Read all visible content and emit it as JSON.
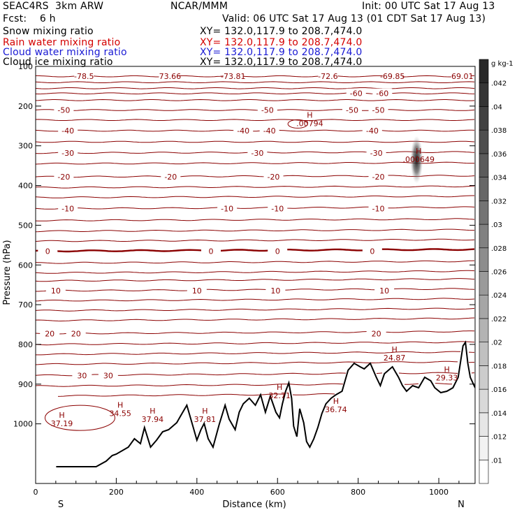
{
  "header": {
    "left_title": "SEAC4RS  3km ARW",
    "center_title": "NCAR/MMM",
    "init": "Init: 00 UTC Sat 17 Aug 13",
    "fcst": "Fcst:    6 h",
    "valid": "Valid: 06 UTC Sat 17 Aug 13 (01 CDT Sat 17 Aug 13)",
    "fields": [
      {
        "name": "Snow mixing ratio",
        "xy": "XY= 132.0,117.9 to 208.7,474.0",
        "color": "#000000"
      },
      {
        "name": "Rain water mixing ratio",
        "xy": "XY= 132.0,117.9 to 208.7,474.0",
        "color": "#d40000"
      },
      {
        "name": "Cloud water mixing ratio",
        "xy": "XY= 132.0,117.9 to 208.7,474.0",
        "color": "#1a1ad4"
      },
      {
        "name": "Cloud ice mixing ratio",
        "xy": "XY= 132.0,117.9 to 208.7,474.0",
        "color": "#000000"
      }
    ]
  },
  "chart_data": {
    "type": "contour cross-section",
    "xlabel": "Distance (km)",
    "ylabel": "Pressure (hPa)",
    "xlim": [
      0,
      1090
    ],
    "ylim": [
      1050,
      100
    ],
    "x_ticks": [
      "0",
      "200",
      "400",
      "600",
      "800",
      "1000"
    ],
    "y_ticks": [
      "100",
      "200",
      "300",
      "400",
      "500",
      "600",
      "700",
      "800",
      "900",
      "1000"
    ],
    "x_ends": {
      "left": "S",
      "right": "N"
    },
    "contour_levels": [
      {
        "value": -75,
        "pressure": 125,
        "labels": [
          {
            "text": "-78.5",
            "x": 120
          },
          {
            "text": "-73.66",
            "x": 330
          },
          {
            "text": "-73.81",
            "x": 490
          },
          {
            "text": "-72.6",
            "x": 725
          },
          {
            "text": "-69.85",
            "x": 885
          },
          {
            "text": "-69.01",
            "x": 1055
          }
        ]
      },
      {
        "value": -60,
        "pressure": 168,
        "labels": [
          {
            "text": "-60",
            "x": 795
          },
          {
            "text": "-60",
            "x": 860
          }
        ]
      },
      {
        "value": -50,
        "pressure": 210,
        "labels": [
          {
            "text": "-50",
            "x": 70
          },
          {
            "text": "-50",
            "x": 575
          },
          {
            "text": "-50",
            "x": 785
          },
          {
            "text": "-50",
            "x": 850
          }
        ]
      },
      {
        "value": -40,
        "pressure": 262,
        "labels": [
          {
            "text": "-40",
            "x": 80
          },
          {
            "text": "-40",
            "x": 515
          },
          {
            "text": "-40",
            "x": 580
          },
          {
            "text": "-40",
            "x": 835
          }
        ]
      },
      {
        "value": -30,
        "pressure": 318,
        "labels": [
          {
            "text": "-30",
            "x": 80
          },
          {
            "text": "-30",
            "x": 550
          },
          {
            "text": "-30",
            "x": 845
          }
        ]
      },
      {
        "value": -20,
        "pressure": 378,
        "labels": [
          {
            "text": "-20",
            "x": 70
          },
          {
            "text": "-20",
            "x": 335
          },
          {
            "text": "-20",
            "x": 590
          },
          {
            "text": "-20",
            "x": 850
          }
        ]
      },
      {
        "value": -10,
        "pressure": 458,
        "labels": [
          {
            "text": "-10",
            "x": 80
          },
          {
            "text": "-10",
            "x": 475
          },
          {
            "text": "-10",
            "x": 600
          },
          {
            "text": "-10",
            "x": 850
          }
        ]
      },
      {
        "value": 0,
        "pressure": 565,
        "labels": [
          {
            "text": "0",
            "x": 30
          },
          {
            "text": "0",
            "x": 435
          },
          {
            "text": "0",
            "x": 600
          },
          {
            "text": "0",
            "x": 835
          }
        ]
      },
      {
        "value": 10,
        "pressure": 665,
        "labels": [
          {
            "text": "10",
            "x": 50
          },
          {
            "text": "10",
            "x": 400
          },
          {
            "text": "10",
            "x": 595
          },
          {
            "text": "10",
            "x": 865
          }
        ]
      },
      {
        "value": 20,
        "pressure": 773,
        "labels": [
          {
            "text": "20",
            "x": 35
          },
          {
            "text": "20",
            "x": 100
          },
          {
            "text": "20",
            "x": 845
          }
        ]
      },
      {
        "value": 30,
        "pressure": 878,
        "labels": [
          {
            "text": "30",
            "x": 115
          },
          {
            "text": "30",
            "x": 180
          }
        ]
      }
    ],
    "extrema": [
      {
        "type": "H",
        "value": "37.19",
        "x": 65,
        "pressure": 995
      },
      {
        "type": "H",
        "value": "34.55",
        "x": 210,
        "pressure": 970
      },
      {
        "type": "H",
        "value": "37.94",
        "x": 290,
        "pressure": 985
      },
      {
        "type": "H",
        "value": "37.81",
        "x": 420,
        "pressure": 985
      },
      {
        "type": "H",
        "value": "32.71",
        "x": 605,
        "pressure": 925
      },
      {
        "type": "H",
        "value": "36.74",
        "x": 745,
        "pressure": 960
      },
      {
        "type": "H",
        "value": "24.87",
        "x": 890,
        "pressure": 830
      },
      {
        "type": "H",
        "value": "29.33",
        "x": 1020,
        "pressure": 880
      },
      {
        "type": "H",
        "value": ".00794",
        "x": 680,
        "pressure": 240
      },
      {
        "type": "H",
        "value": ".000649",
        "x": 950,
        "pressure": 330
      }
    ],
    "colorbar": {
      "unit": "g kg-1",
      "ticks": [
        ".01",
        ".012",
        ".014",
        ".016",
        ".018",
        ".02",
        ".022",
        ".024",
        ".026",
        ".028",
        ".03",
        ".032",
        ".034",
        ".036",
        ".038",
        ".04",
        ".042"
      ]
    },
    "grid": false
  }
}
